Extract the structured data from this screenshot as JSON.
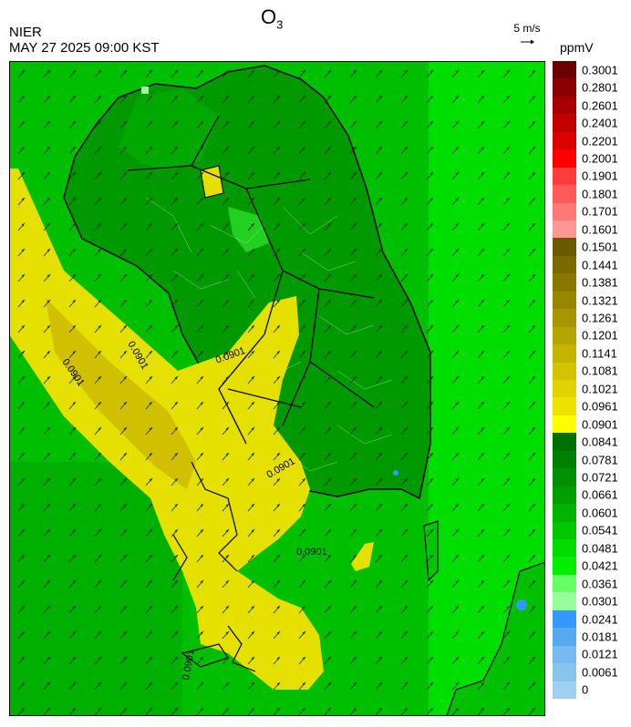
{
  "header": {
    "title_main": "O",
    "title_sub": "3",
    "org": "NIER",
    "timestamp": "MAY 27 2025 09:00 KST"
  },
  "wind_reference": {
    "label": "5 m/s"
  },
  "colorbar": {
    "unit": "ppmV",
    "labels": [
      "0.3001",
      "0.2801",
      "0.2601",
      "0.2401",
      "0.2201",
      "0.2001",
      "0.1901",
      "0.1801",
      "0.1701",
      "0.1601",
      "0.1501",
      "0.1441",
      "0.1381",
      "0.1321",
      "0.1261",
      "0.1201",
      "0.1141",
      "0.1081",
      "0.1021",
      "0.0961",
      "0.0901",
      "0.0841",
      "0.0781",
      "0.0721",
      "0.0661",
      "0.0601",
      "0.0541",
      "0.0481",
      "0.0421",
      "0.0361",
      "0.0301",
      "0.0241",
      "0.0181",
      "0.0121",
      "0.0061",
      "0"
    ],
    "colors": [
      "#6a0000",
      "#8b0000",
      "#a80000",
      "#c20000",
      "#dd0000",
      "#ff0000",
      "#ff3c3c",
      "#ff5a5a",
      "#ff7878",
      "#ff9696",
      "#6b5a00",
      "#7a6a00",
      "#887800",
      "#978700",
      "#a69600",
      "#b5a500",
      "#c4b400",
      "#d3c300",
      "#e2d200",
      "#f1e100",
      "#ffff00",
      "#007000",
      "#008000",
      "#009000",
      "#00a000",
      "#00b400",
      "#00c800",
      "#00dc00",
      "#00f000",
      "#66ff66",
      "#99ff99",
      "#3399ff",
      "#55aaee",
      "#77bbee",
      "#88c4ee",
      "#a0d0f0"
    ]
  },
  "map": {
    "contour_labels": [
      "0.0901",
      "0.0901",
      "0.0901",
      "0.0901",
      "0.0901",
      "0.0901"
    ],
    "dominant_colors": {
      "sea": "#00c000",
      "land": "#009000",
      "plume": "#e8e000"
    }
  }
}
